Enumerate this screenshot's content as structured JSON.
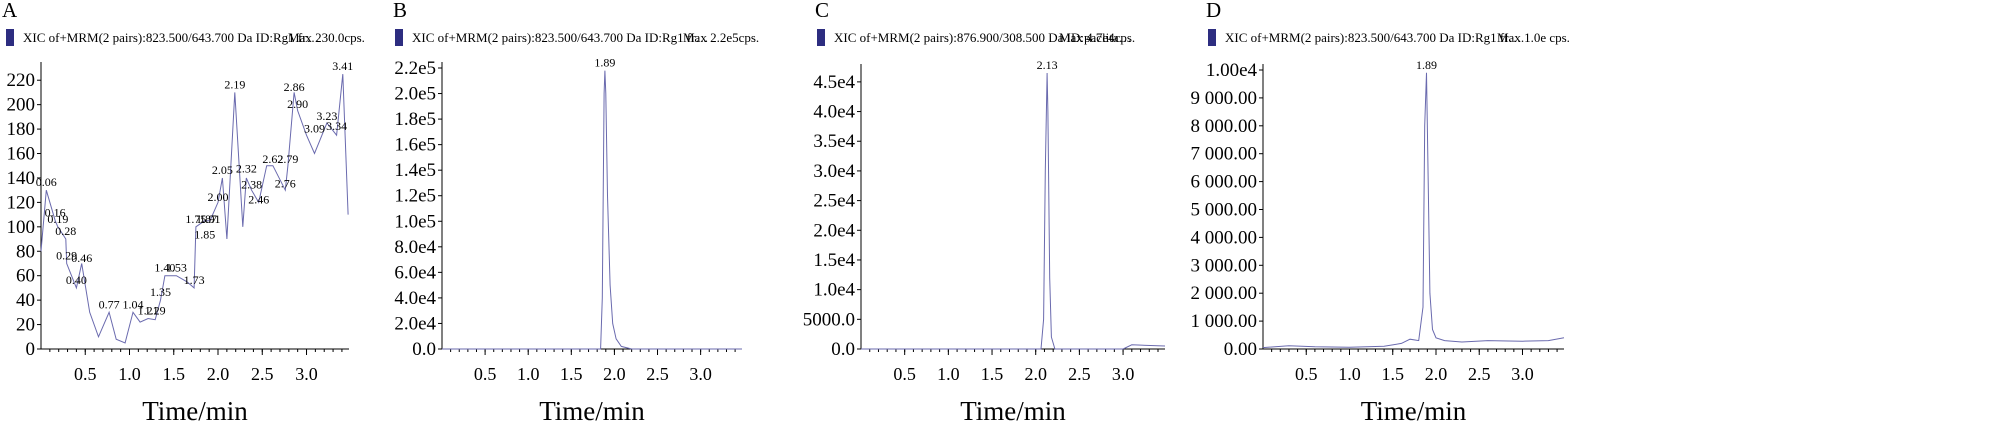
{
  "figure": {
    "panels": [
      {
        "letter": "A",
        "header": "XIC of+MRM(2 pairs):823.500/643.700 Da ID:Rg1 fr…",
        "max_text": "Max 230.0cps.",
        "xlabel": "Time/min",
        "legend_color": "#2d2d80"
      },
      {
        "letter": "B",
        "header": "XIC of+MRM(2 pairs):823.500/643.700 Da ID:Rg1 fr…",
        "max_text": "Max 2.2e5cps.",
        "xlabel": "Time/min",
        "legend_color": "#2d2d80"
      },
      {
        "letter": "C",
        "header": "XIC of+MRM(2 pairs):876.900/308.500 Da ID:paclita…",
        "max_text": "Max 4.7e4cps.",
        "xlabel": "Time/min",
        "legend_color": "#2d2d80"
      },
      {
        "letter": "D",
        "header": "XIC of+MRM(2 pairs):823.500/643.700 Da ID:Rg1 fr…",
        "max_text": "Max.1.0e cps.",
        "xlabel": "Time/min",
        "legend_color": "#2d2d80"
      }
    ]
  },
  "chart_data": [
    {
      "type": "line",
      "xlabel": "Time/min",
      "xlim": [
        0.0,
        3.48
      ],
      "ylim": [
        0,
        230
      ],
      "x_ticks": [
        0.5,
        1.0,
        1.5,
        2.0,
        2.5,
        3.0
      ],
      "x_tick_labels": [
        "0.5",
        "1.0",
        "1.5",
        "2.0",
        "2.5",
        "3.0"
      ],
      "y_ticks": [
        0,
        20,
        40,
        60,
        80,
        100,
        120,
        140,
        160,
        180,
        200,
        220
      ],
      "y_tick_labels": [
        "0",
        "20",
        "40",
        "60",
        "80",
        "100",
        "120",
        "140",
        "160",
        "180",
        "200",
        "220"
      ],
      "trace_color": "#6a6aae",
      "series": [
        {
          "x": [
            0.0,
            0.06,
            0.16,
            0.19,
            0.28,
            0.29,
            0.4,
            0.46,
            0.55,
            0.65,
            0.77,
            0.85,
            0.95,
            1.04,
            1.12,
            1.21,
            1.29,
            1.35,
            1.4,
            1.53,
            1.65,
            1.73,
            1.75,
            1.85,
            1.87,
            1.91,
            2.0,
            2.05,
            2.1,
            2.19,
            2.28,
            2.32,
            2.38,
            2.46,
            2.55,
            2.62,
            2.76,
            2.79,
            2.86,
            2.9,
            3.0,
            3.09,
            3.23,
            3.34,
            3.41,
            3.47
          ],
          "y": [
            80,
            130,
            105,
            100,
            90,
            70,
            50,
            70,
            30,
            10,
            30,
            8,
            5,
            30,
            22,
            25,
            24,
            40,
            60,
            60,
            55,
            50,
            100,
            105,
            105,
            105,
            120,
            140,
            90,
            210,
            100,
            140,
            130,
            120,
            150,
            150,
            130,
            150,
            210,
            195,
            175,
            160,
            185,
            175,
            225,
            110
          ]
        }
      ],
      "peak_labels": [
        {
          "text": "0.06",
          "x": 0.06,
          "y": 130
        },
        {
          "text": "0.16",
          "x": 0.16,
          "y": 105
        },
        {
          "text": "0.19",
          "x": 0.19,
          "y": 100
        },
        {
          "text": "0.28",
          "x": 0.28,
          "y": 90
        },
        {
          "text": "0.29",
          "x": 0.29,
          "y": 70
        },
        {
          "text": "0.40",
          "x": 0.4,
          "y": 50
        },
        {
          "text": "0.46",
          "x": 0.46,
          "y": 68
        },
        {
          "text": "0.77",
          "x": 0.77,
          "y": 30
        },
        {
          "text": "1.04",
          "x": 1.04,
          "y": 30
        },
        {
          "text": "1.21",
          "x": 1.21,
          "y": 25
        },
        {
          "text": "1.29",
          "x": 1.29,
          "y": 25
        },
        {
          "text": "1.35",
          "x": 1.35,
          "y": 40
        },
        {
          "text": "1.40",
          "x": 1.4,
          "y": 60
        },
        {
          "text": "1.53",
          "x": 1.53,
          "y": 60
        },
        {
          "text": "1.73",
          "x": 1.73,
          "y": 50
        },
        {
          "text": "1.75",
          "x": 1.75,
          "y": 100
        },
        {
          "text": "1.85",
          "x": 1.85,
          "y": 87
        },
        {
          "text": "1.87",
          "x": 1.87,
          "y": 100
        },
        {
          "text": "1.91",
          "x": 1.91,
          "y": 100
        },
        {
          "text": "2.00",
          "x": 2.0,
          "y": 118
        },
        {
          "text": "2.05",
          "x": 2.05,
          "y": 140
        },
        {
          "text": "2.19",
          "x": 2.19,
          "y": 210
        },
        {
          "text": "2.32",
          "x": 2.32,
          "y": 141
        },
        {
          "text": "2.38",
          "x": 2.38,
          "y": 128
        },
        {
          "text": "2.46",
          "x": 2.46,
          "y": 116
        },
        {
          "text": "2.62",
          "x": 2.62,
          "y": 149
        },
        {
          "text": "2.76",
          "x": 2.76,
          "y": 129
        },
        {
          "text": "2.79",
          "x": 2.79,
          "y": 149
        },
        {
          "text": "2.86",
          "x": 2.86,
          "y": 208
        },
        {
          "text": "2.90",
          "x": 2.9,
          "y": 194
        },
        {
          "text": "3.09",
          "x": 3.09,
          "y": 174
        },
        {
          "text": "3.23",
          "x": 3.23,
          "y": 184
        },
        {
          "text": "3.34",
          "x": 3.34,
          "y": 176
        },
        {
          "text": "3.41",
          "x": 3.41,
          "y": 225
        }
      ]
    },
    {
      "type": "line",
      "xlabel": "Time/min",
      "xlim": [
        0.0,
        3.48
      ],
      "ylim": [
        0,
        220000
      ],
      "x_ticks": [
        0.5,
        1.0,
        1.5,
        2.0,
        2.5,
        3.0
      ],
      "x_tick_labels": [
        "0.5",
        "1.0",
        "1.5",
        "2.0",
        "2.5",
        "3.0"
      ],
      "y_ticks": [
        0,
        20000,
        40000,
        60000,
        80000,
        100000,
        120000,
        140000,
        160000,
        180000,
        200000,
        220000
      ],
      "y_tick_labels": [
        "0.0",
        "2.0e4",
        "4.0e4",
        "6.0e4",
        "8.0e4",
        "1.0e5",
        "1.2e5",
        "1.4e5",
        "1.6e5",
        "1.8e5",
        "2.0e5",
        "2.2e5"
      ],
      "trace_color": "#6a6aae",
      "series": [
        {
          "x": [
            0.0,
            1.8,
            1.84,
            1.86,
            1.88,
            1.89,
            1.9,
            1.92,
            1.95,
            1.98,
            2.02,
            2.08,
            2.2,
            3.48
          ],
          "y": [
            0,
            0,
            0,
            40000,
            200000,
            218000,
            200000,
            120000,
            50000,
            20000,
            8000,
            2000,
            0,
            0
          ]
        }
      ],
      "peak_labels": [
        {
          "text": "1.89",
          "x": 1.89,
          "y": 218000
        }
      ]
    },
    {
      "type": "line",
      "xlabel": "Time/min",
      "xlim": [
        0.0,
        3.48
      ],
      "ylim": [
        0,
        47000
      ],
      "x_ticks": [
        0.5,
        1.0,
        1.5,
        2.0,
        2.5,
        3.0
      ],
      "x_tick_labels": [
        "0.5",
        "1.0",
        "1.5",
        "2.0",
        "2.5",
        "3.0"
      ],
      "y_ticks": [
        0,
        5000,
        10000,
        15000,
        20000,
        25000,
        30000,
        35000,
        40000,
        45000
      ],
      "y_tick_labels": [
        "0.0",
        "5000.0",
        "1.0e4",
        "1.5e4",
        "2.0e4",
        "2.5e4",
        "3.0e4",
        "3.5e4",
        "4.0e4",
        "4.5e4"
      ],
      "trace_color": "#6a6aae",
      "series": [
        {
          "x": [
            0.0,
            2.06,
            2.09,
            2.11,
            2.13,
            2.14,
            2.16,
            2.18,
            2.22,
            3.0,
            3.1,
            3.48
          ],
          "y": [
            0,
            0,
            5000,
            30000,
            46500,
            40000,
            12000,
            2000,
            0,
            0,
            700,
            500
          ]
        }
      ],
      "peak_labels": [
        {
          "text": "2.13",
          "x": 2.13,
          "y": 46500
        }
      ]
    },
    {
      "type": "line",
      "xlabel": "Time/min",
      "xlim": [
        0.0,
        3.48
      ],
      "ylim": [
        0,
        10000
      ],
      "x_ticks": [
        0.5,
        1.0,
        1.5,
        2.0,
        2.5,
        3.0
      ],
      "x_tick_labels": [
        "0.5",
        "1.0",
        "1.5",
        "2.0",
        "2.5",
        "3.0"
      ],
      "y_ticks": [
        0,
        1000,
        2000,
        3000,
        4000,
        5000,
        6000,
        7000,
        8000,
        9000,
        10000
      ],
      "y_tick_labels": [
        "0.00",
        "1 000.00",
        "2 000.00",
        "3 000.00",
        "4 000.00",
        "5 000.00",
        "6 000.00",
        "7 000.00",
        "8 000.00",
        "9 000.00",
        "1.00e4"
      ],
      "trace_color": "#6a6aae",
      "series": [
        {
          "x": [
            0.0,
            0.3,
            0.6,
            1.0,
            1.4,
            1.6,
            1.7,
            1.8,
            1.85,
            1.87,
            1.89,
            1.91,
            1.93,
            1.96,
            2.0,
            2.1,
            2.3,
            2.6,
            3.0,
            3.3,
            3.48
          ],
          "y": [
            50,
            120,
            80,
            60,
            100,
            200,
            350,
            300,
            1500,
            8000,
            9900,
            6000,
            2000,
            700,
            400,
            300,
            250,
            300,
            280,
            300,
            400
          ]
        }
      ],
      "peak_labels": [
        {
          "text": "1.89",
          "x": 1.89,
          "y": 9900
        }
      ]
    }
  ]
}
